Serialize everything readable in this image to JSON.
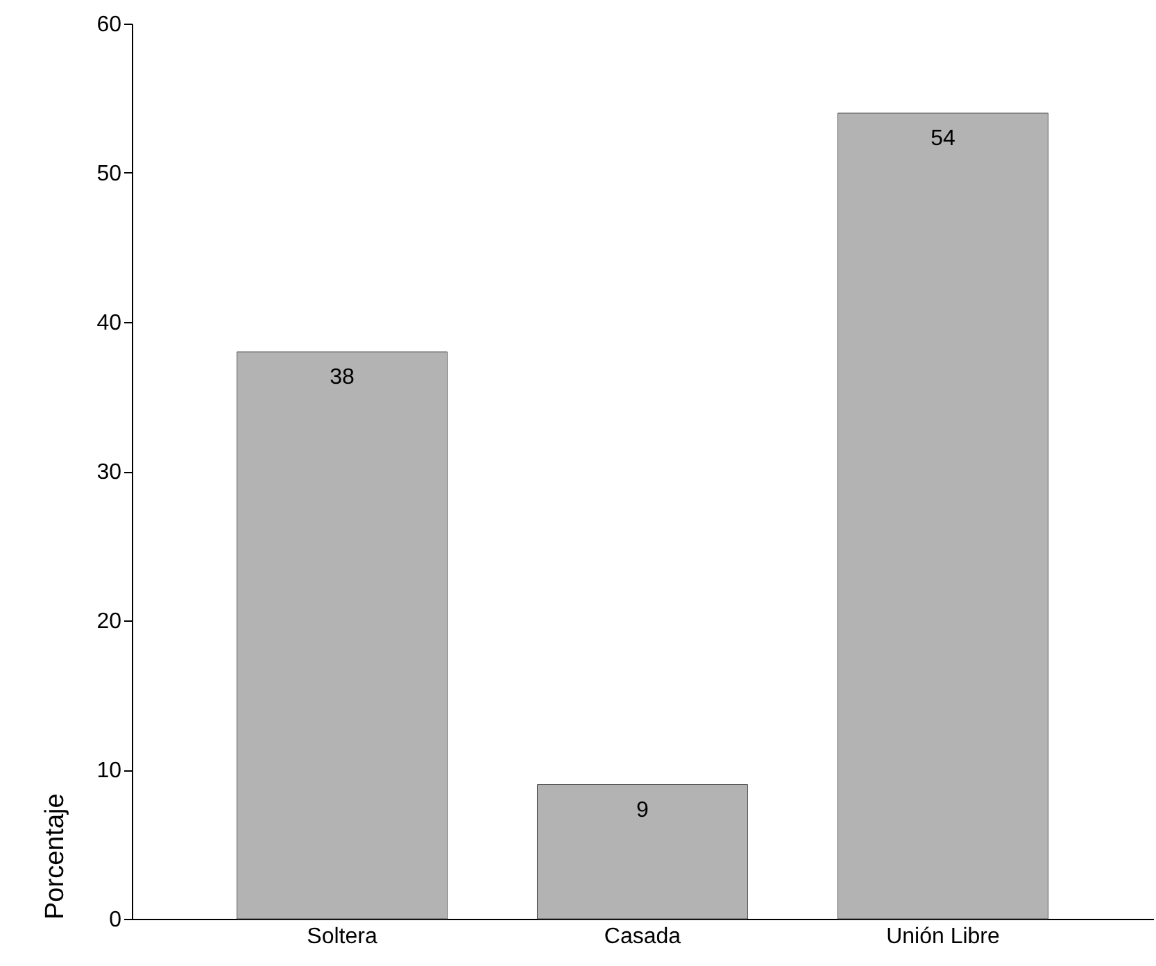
{
  "chart_data": {
    "type": "bar",
    "ylabel": "Porcentaje",
    "categories": [
      "Soltera",
      "Casada",
      "Unión Libre"
    ],
    "values": [
      38,
      9,
      54
    ],
    "color": "#b3b3b3",
    "ylim": [
      0,
      60
    ],
    "yticks": [
      0,
      10,
      20,
      30,
      40,
      50,
      60
    ],
    "grid": false,
    "data_labels": true
  }
}
